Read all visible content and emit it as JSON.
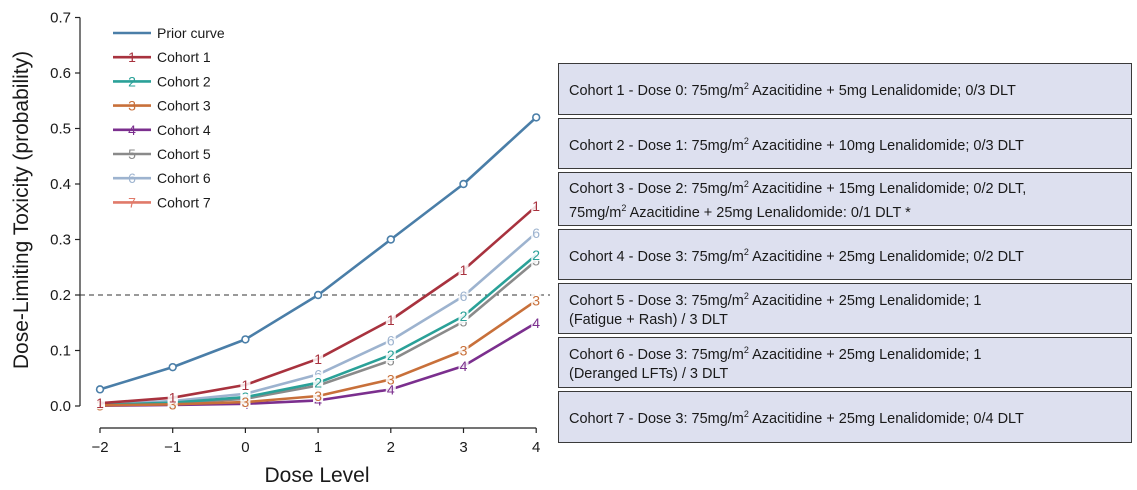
{
  "chart_data": {
    "type": "line",
    "xlabel": "Dose Level",
    "ylabel": "Dose-Limiting Toxicity (probability)",
    "x": [
      -2,
      -1,
      0,
      1,
      2,
      3,
      4
    ],
    "x_tick_labels": [
      "−2",
      "−1",
      "0",
      "1",
      "2",
      "3",
      "4"
    ],
    "y_ticks": [
      0.0,
      0.1,
      0.2,
      0.3,
      0.4,
      0.5,
      0.6,
      0.7
    ],
    "y_tick_labels": [
      "0.0",
      "0.1",
      "0.2",
      "0.3",
      "0.4",
      "0.5",
      "0.6",
      "0.7"
    ],
    "xlim": [
      -2.2,
      4.2
    ],
    "ylim": [
      -0.02,
      0.7
    ],
    "grid": false,
    "legend_position": "top-left",
    "target_line": 0.2,
    "series": [
      {
        "name": "Prior curve",
        "marker": "o",
        "color": "#4a7ea8",
        "values": [
          0.03,
          0.07,
          0.12,
          0.2,
          0.3,
          0.4,
          0.52
        ]
      },
      {
        "name": "Cohort 1",
        "marker": "1",
        "color": "#a8323e",
        "values": [
          0.005,
          0.015,
          0.038,
          0.085,
          0.155,
          0.245,
          0.36
        ]
      },
      {
        "name": "Cohort 2",
        "marker": "2",
        "color": "#2aa198",
        "values": [
          0.002,
          0.006,
          0.016,
          0.042,
          0.092,
          0.162,
          0.272
        ]
      },
      {
        "name": "Cohort 3",
        "marker": "3",
        "color": "#c8703a",
        "values": [
          0.001,
          0.003,
          0.007,
          0.018,
          0.048,
          0.1,
          0.19
        ]
      },
      {
        "name": "Cohort 4",
        "marker": "4",
        "color": "#7b2f8e",
        "values": [
          0.0005,
          0.002,
          0.004,
          0.01,
          0.03,
          0.072,
          0.15
        ]
      },
      {
        "name": "Cohort 5",
        "marker": "5",
        "color": "#8a8a8a",
        "values": [
          0.002,
          0.005,
          0.013,
          0.037,
          0.082,
          0.152,
          0.262
        ]
      },
      {
        "name": "Cohort 6",
        "marker": "6",
        "color": "#9db3cf",
        "values": [
          0.003,
          0.009,
          0.022,
          0.057,
          0.118,
          0.198,
          0.312
        ]
      },
      {
        "name": "Cohort 7",
        "marker": "7",
        "color": "#e07a6a",
        "values": [
          0.002,
          0.004,
          0.011,
          0.036,
          0.088,
          0.158,
          0.258
        ]
      }
    ]
  },
  "cohorts": [
    {
      "pre": "Cohort 1 - Dose 0: 75mg/m",
      "sup": "2",
      "post": " Azacitidine + 5mg Lenalidomide; 0/3 DLT"
    },
    {
      "pre": "Cohort 2 - Dose 1: 75mg/m",
      "sup": "2",
      "post": " Azacitidine + 10mg Lenalidomide; 0/3 DLT"
    },
    {
      "pre": "Cohort 3 - Dose 2: 75mg/m",
      "sup": "2",
      "post": " Azacitidine + 15mg Lenalidomide; 0/2 DLT,",
      "line2_pre": "75mg/m",
      "line2_sup": "2",
      "line2_post": " Azacitidine + 25mg Lenalidomide: 0/1 DLT *"
    },
    {
      "pre": "Cohort 4 - Dose 3: 75mg/m",
      "sup": "2",
      "post": " Azacitidine + 25mg Lenalidomide; 0/2 DLT"
    },
    {
      "pre": "Cohort 5 - Dose 3: 75mg/m",
      "sup": "2",
      "post": " Azacitidine + 25mg Lenalidomide; 1",
      "line2_plain": "(Fatigue + Rash) / 3 DLT"
    },
    {
      "pre": "Cohort 6 - Dose 3: 75mg/m",
      "sup": "2",
      "post": " Azacitidine + 25mg Lenalidomide; 1",
      "line2_plain": "(Deranged LFTs) / 3 DLT"
    },
    {
      "pre": "Cohort 7 - Dose 3: 75mg/m",
      "sup": "2",
      "post": " Azacitidine + 25mg Lenalidomide; 0/4 DLT"
    }
  ]
}
